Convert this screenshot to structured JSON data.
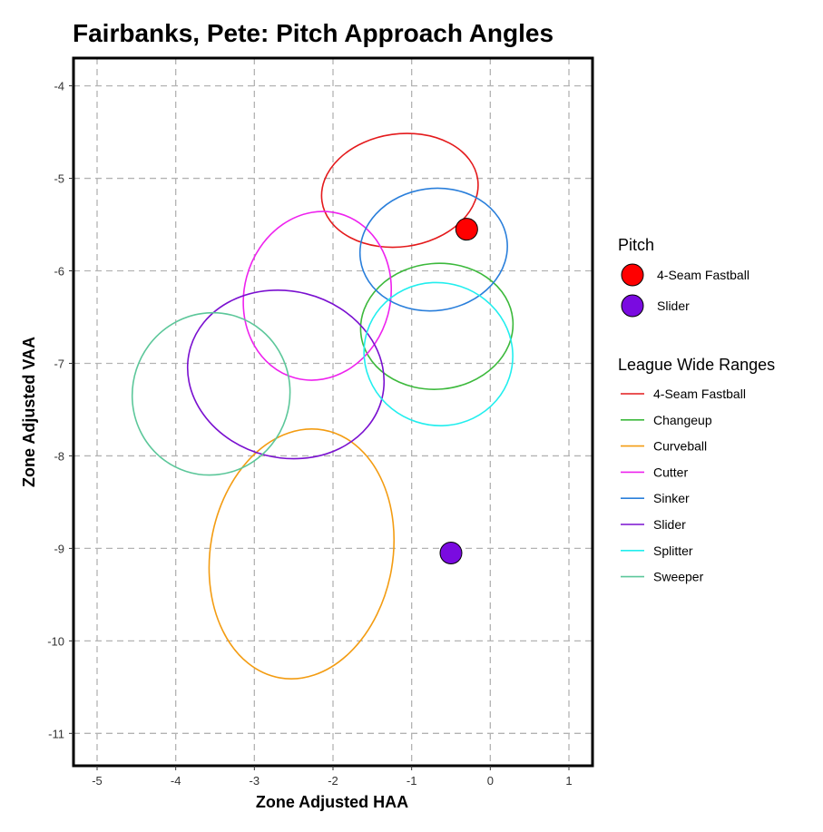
{
  "chart_data": {
    "type": "scatter",
    "title": "Fairbanks, Pete: Pitch Approach Angles",
    "xlabel": "Zone Adjusted HAA",
    "ylabel": "Zone Adjusted VAA",
    "xlim": [
      -5.3,
      1.3
    ],
    "ylim": [
      -11.35,
      -3.7
    ],
    "x_ticks": [
      -5,
      -4,
      -3,
      -2,
      -1,
      0,
      1
    ],
    "y_ticks": [
      -4,
      -5,
      -6,
      -7,
      -8,
      -9,
      -10,
      -11
    ],
    "grid": true,
    "points_legend_title": "Pitch",
    "points": [
      {
        "name": "4-Seam Fastball",
        "x": -0.3,
        "y": -5.55,
        "color": "#ff0000"
      },
      {
        "name": "Slider",
        "x": -0.5,
        "y": -9.05,
        "color": "#7a0be0"
      }
    ],
    "ranges_legend_title": "League Wide Ranges",
    "ranges": [
      {
        "name": "4-Seam Fastball",
        "color": "#e41a1c",
        "cx": -1.15,
        "cy": -5.13,
        "rx": 1.0,
        "ry": 0.61,
        "angle": -8
      },
      {
        "name": "Changeup",
        "color": "#3cb93c",
        "cx": -0.68,
        "cy": -6.6,
        "rx": 0.97,
        "ry": 0.68,
        "angle": -5
      },
      {
        "name": "Curveball",
        "color": "#f39c12",
        "cx": -2.4,
        "cy": -9.06,
        "rx": 1.16,
        "ry": 1.36,
        "angle": 10
      },
      {
        "name": "Cutter",
        "color": "#ee22ee",
        "cx": -2.2,
        "cy": -6.27,
        "rx": 0.93,
        "ry": 0.92,
        "angle": 15
      },
      {
        "name": "Sinker",
        "color": "#2a7fdb",
        "cx": -0.72,
        "cy": -5.77,
        "rx": 0.94,
        "ry": 0.66,
        "angle": -8
      },
      {
        "name": "Slider",
        "color": "#7a10d0",
        "cx": -2.6,
        "cy": -7.12,
        "rx": 1.26,
        "ry": 0.9,
        "angle": 14
      },
      {
        "name": "Splitter",
        "color": "#22eeee",
        "cx": -0.66,
        "cy": -6.9,
        "rx": 0.95,
        "ry": 0.77,
        "angle": 18
      },
      {
        "name": "Sweeper",
        "color": "#5cc79a",
        "cx": -3.55,
        "cy": -7.33,
        "rx": 1.0,
        "ry": 0.88,
        "angle": 18
      }
    ]
  }
}
